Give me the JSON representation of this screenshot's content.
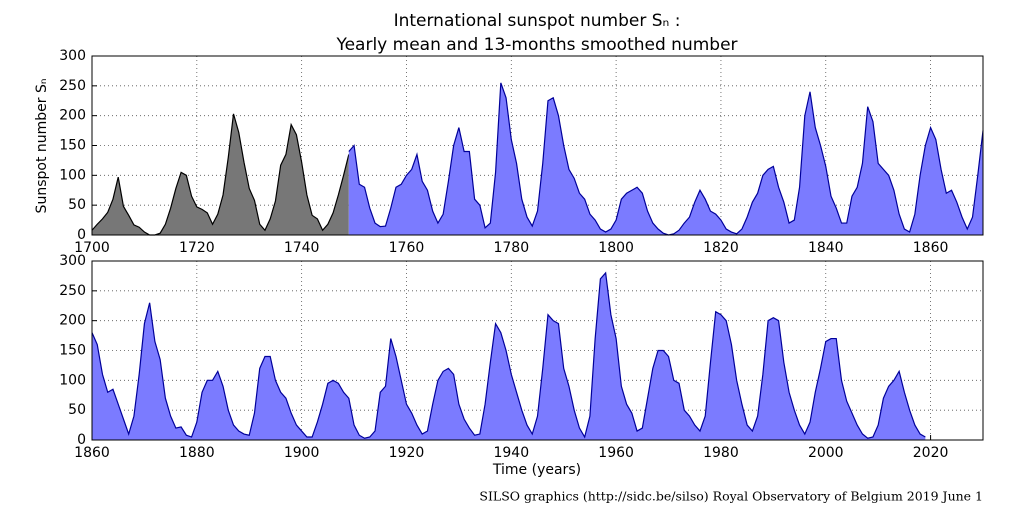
{
  "chart_data": [
    {
      "type": "area",
      "title": "International sunspot number Sₙ :",
      "subtitle": "Yearly mean and 13-months smoothed number",
      "y_label": "Sunspot number Sₙ",
      "xlim": [
        1700,
        1870
      ],
      "xticks": [
        1700,
        1720,
        1740,
        1760,
        1780,
        1800,
        1820,
        1840,
        1860
      ],
      "ylim": [
        0,
        300
      ],
      "yticks": [
        0,
        50,
        100,
        150,
        200,
        250,
        300
      ],
      "grid": true,
      "series": [
        {
          "fill": "#777777",
          "color": "#000000",
          "x": [
            1700,
            1701,
            1702,
            1703,
            1704,
            1705,
            1706,
            1707,
            1708,
            1709,
            1710,
            1711,
            1712,
            1713,
            1714,
            1715,
            1716,
            1717,
            1718,
            1719,
            1720,
            1721,
            1722,
            1723,
            1724,
            1725,
            1726,
            1727,
            1728,
            1729,
            1730,
            1731,
            1732,
            1733,
            1734,
            1735,
            1736,
            1737,
            1738,
            1739,
            1740,
            1741,
            1742,
            1743,
            1744,
            1745,
            1746,
            1747,
            1748,
            1749
          ],
          "values": [
            8,
            18,
            27,
            38,
            60,
            97,
            48,
            33,
            17,
            13,
            5,
            0,
            0,
            3,
            18,
            45,
            78,
            105,
            100,
            65,
            47,
            43,
            37,
            18,
            35,
            67,
            130,
            203,
            172,
            122,
            78,
            58,
            18,
            8,
            27,
            57,
            117,
            135,
            185,
            168,
            122,
            67,
            33,
            27,
            8,
            18,
            37,
            67,
            100,
            135
          ]
        },
        {
          "fill": "#7b7bff",
          "color": "#00009a",
          "x": [
            1749,
            1750,
            1751,
            1752,
            1753,
            1754,
            1755,
            1756,
            1757,
            1758,
            1759,
            1760,
            1761,
            1762,
            1763,
            1764,
            1765,
            1766,
            1767,
            1768,
            1769,
            1770,
            1771,
            1772,
            1773,
            1774,
            1775,
            1776,
            1777,
            1778,
            1779,
            1780,
            1781,
            1782,
            1783,
            1784,
            1785,
            1786,
            1787,
            1788,
            1789,
            1790,
            1791,
            1792,
            1793,
            1794,
            1795,
            1796,
            1797,
            1798,
            1799,
            1800,
            1801,
            1802,
            1803,
            1804,
            1805,
            1806,
            1807,
            1808,
            1809,
            1810,
            1811,
            1812,
            1813,
            1814,
            1815,
            1816,
            1817,
            1818,
            1819,
            1820,
            1821,
            1822,
            1823,
            1824,
            1825,
            1826,
            1827,
            1828,
            1829,
            1830,
            1831,
            1832,
            1833,
            1834,
            1835,
            1836,
            1837,
            1838,
            1839,
            1840,
            1841,
            1842,
            1843,
            1844,
            1845,
            1846,
            1847,
            1848,
            1849,
            1850,
            1851,
            1852,
            1853,
            1854,
            1855,
            1856,
            1857,
            1858,
            1859,
            1860,
            1861,
            1862,
            1863,
            1864,
            1865,
            1866,
            1867,
            1868,
            1869,
            1870
          ],
          "values": [
            140,
            150,
            85,
            80,
            45,
            20,
            14,
            15,
            45,
            80,
            85,
            100,
            110,
            135,
            90,
            75,
            40,
            20,
            35,
            90,
            150,
            180,
            140,
            140,
            60,
            50,
            12,
            20,
            105,
            255,
            230,
            160,
            120,
            60,
            30,
            15,
            40,
            120,
            225,
            230,
            200,
            150,
            110,
            95,
            70,
            60,
            35,
            25,
            10,
            5,
            10,
            25,
            60,
            70,
            75,
            80,
            70,
            40,
            20,
            10,
            3,
            0,
            2,
            8,
            20,
            30,
            55,
            75,
            60,
            40,
            35,
            25,
            10,
            5,
            2,
            10,
            30,
            55,
            70,
            100,
            110,
            115,
            80,
            55,
            20,
            25,
            80,
            200,
            240,
            180,
            150,
            115,
            65,
            45,
            20,
            20,
            65,
            80,
            120,
            215,
            190,
            120,
            110,
            100,
            75,
            35,
            10,
            5,
            35,
            100,
            150,
            180,
            160,
            110,
            70,
            75,
            55,
            30,
            10,
            30,
            100,
            175
          ]
        }
      ]
    },
    {
      "type": "area",
      "x_label": "Time (years)",
      "footer": "SILSO graphics (http://sidc.be/silso)  Royal Observatory of Belgium  2019 June 1",
      "xlim": [
        1860,
        2030
      ],
      "xticks": [
        1860,
        1880,
        1900,
        1920,
        1940,
        1960,
        1980,
        2000,
        2020
      ],
      "ylim": [
        0,
        300
      ],
      "yticks": [
        0,
        50,
        100,
        150,
        200,
        250,
        300
      ],
      "grid": true,
      "series": [
        {
          "fill": "#7b7bff",
          "color": "#00009a",
          "x": [
            1860,
            1861,
            1862,
            1863,
            1864,
            1865,
            1866,
            1867,
            1868,
            1869,
            1870,
            1871,
            1872,
            1873,
            1874,
            1875,
            1876,
            1877,
            1878,
            1879,
            1880,
            1881,
            1882,
            1883,
            1884,
            1885,
            1886,
            1887,
            1888,
            1889,
            1890,
            1891,
            1892,
            1893,
            1894,
            1895,
            1896,
            1897,
            1898,
            1899,
            1900,
            1901,
            1902,
            1903,
            1904,
            1905,
            1906,
            1907,
            1908,
            1909,
            1910,
            1911,
            1912,
            1913,
            1914,
            1915,
            1916,
            1917,
            1918,
            1919,
            1920,
            1921,
            1922,
            1923,
            1924,
            1925,
            1926,
            1927,
            1928,
            1929,
            1930,
            1931,
            1932,
            1933,
            1934,
            1935,
            1936,
            1937,
            1938,
            1939,
            1940,
            1941,
            1942,
            1943,
            1944,
            1945,
            1946,
            1947,
            1948,
            1949,
            1950,
            1951,
            1952,
            1953,
            1954,
            1955,
            1956,
            1957,
            1958,
            1959,
            1960,
            1961,
            1962,
            1963,
            1964,
            1965,
            1966,
            1967,
            1968,
            1969,
            1970,
            1971,
            1972,
            1973,
            1974,
            1975,
            1976,
            1977,
            1978,
            1979,
            1980,
            1981,
            1982,
            1983,
            1984,
            1985,
            1986,
            1987,
            1988,
            1989,
            1990,
            1991,
            1992,
            1993,
            1994,
            1995,
            1996,
            1997,
            1998,
            1999,
            2000,
            2001,
            2002,
            2003,
            2004,
            2005,
            2006,
            2007,
            2008,
            2009,
            2010,
            2011,
            2012,
            2013,
            2014,
            2015,
            2016,
            2017,
            2018,
            2019
          ],
          "values": [
            180,
            160,
            110,
            80,
            85,
            60,
            35,
            10,
            40,
            110,
            195,
            230,
            165,
            135,
            70,
            40,
            20,
            22,
            8,
            5,
            30,
            80,
            100,
            100,
            115,
            90,
            50,
            25,
            15,
            10,
            8,
            45,
            120,
            140,
            140,
            100,
            80,
            70,
            45,
            25,
            15,
            5,
            5,
            30,
            60,
            95,
            100,
            95,
            80,
            70,
            25,
            8,
            3,
            5,
            15,
            80,
            90,
            170,
            140,
            100,
            60,
            45,
            25,
            10,
            15,
            60,
            100,
            115,
            120,
            110,
            60,
            35,
            20,
            8,
            10,
            60,
            130,
            195,
            180,
            150,
            110,
            80,
            50,
            25,
            10,
            40,
            120,
            210,
            200,
            195,
            120,
            90,
            50,
            20,
            5,
            40,
            170,
            270,
            280,
            210,
            170,
            90,
            60,
            45,
            15,
            20,
            70,
            120,
            150,
            150,
            140,
            100,
            95,
            50,
            40,
            25,
            15,
            40,
            130,
            215,
            210,
            200,
            160,
            100,
            60,
            25,
            15,
            40,
            110,
            200,
            205,
            200,
            130,
            80,
            50,
            25,
            10,
            30,
            80,
            120,
            165,
            170,
            170,
            100,
            65,
            45,
            25,
            10,
            3,
            5,
            25,
            70,
            90,
            100,
            115,
            80,
            50,
            25,
            10,
            5
          ]
        }
      ]
    }
  ]
}
